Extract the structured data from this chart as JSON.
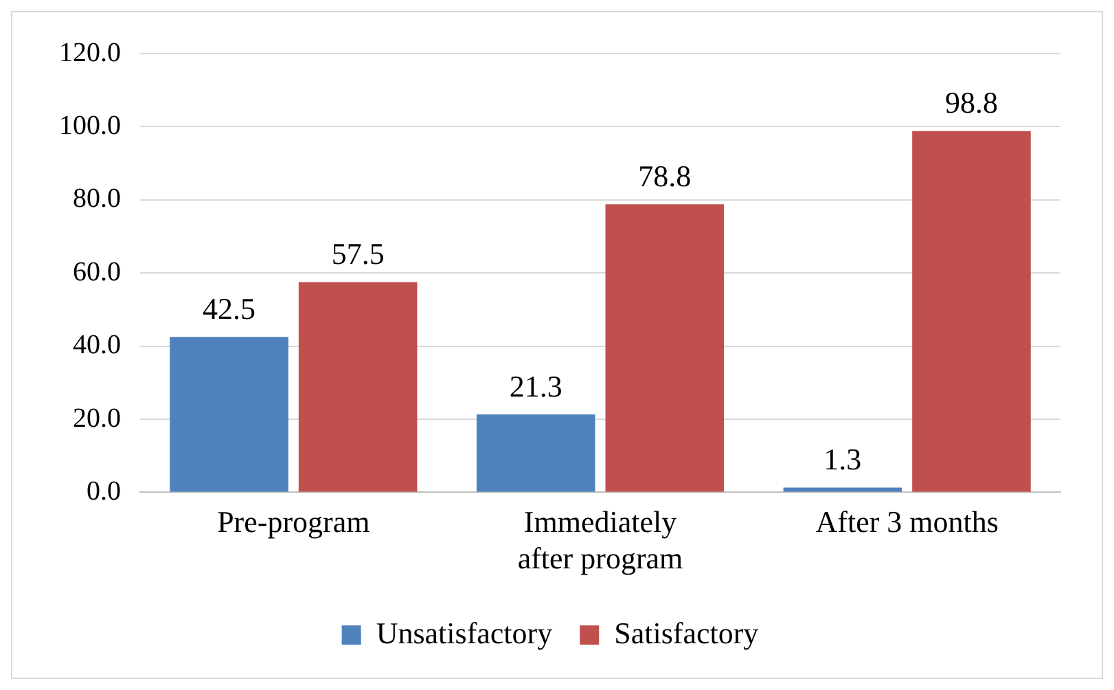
{
  "chart_data": {
    "type": "bar",
    "categories": [
      "Pre-program",
      "Immediately after program",
      "After 3 months"
    ],
    "series": [
      {
        "name": "Unsatisfactory",
        "color": "#4f81bd",
        "values": [
          42.5,
          21.3,
          1.3
        ]
      },
      {
        "name": "Satisfactory",
        "color": "#c0504d",
        "values": [
          57.5,
          78.8,
          98.8
        ]
      }
    ],
    "ylim": [
      0,
      120
    ],
    "yticks": [
      {
        "value": 0,
        "label": "0.0"
      },
      {
        "value": 20,
        "label": "20.0"
      },
      {
        "value": 40,
        "label": "40.0"
      },
      {
        "value": 60,
        "label": "60.0"
      },
      {
        "value": 80,
        "label": "80.0"
      },
      {
        "value": 100,
        "label": "100.0"
      },
      {
        "value": 120,
        "label": "120.0"
      }
    ],
    "grid": "y",
    "legend": "bottom",
    "data_labels": true
  }
}
